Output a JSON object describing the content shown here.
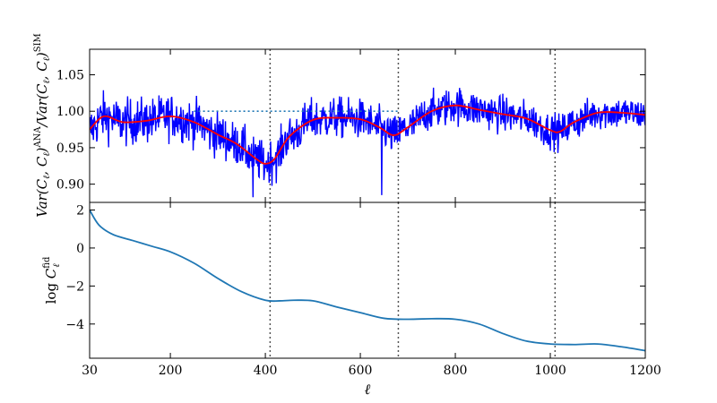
{
  "chart_data": [
    {
      "type": "line",
      "panel": "top",
      "ylabel": "Var(C_ℓ,C_ℓ)^ANA/Var(C_ℓ,C_ℓ)^SIM",
      "xlim": [
        30,
        1200
      ],
      "ylim": [
        0.875,
        1.085
      ],
      "yticks": [
        0.9,
        0.95,
        1.0,
        1.05
      ],
      "ytick_labels": [
        "0.90",
        "0.95",
        "1.00",
        "1.05"
      ],
      "series": [
        {
          "color": "#0000ff",
          "style": "noisy",
          "noise_amplitude": 0.025,
          "samples": 1171
        },
        {
          "color": "#ff0000",
          "style": "smooth",
          "x": [
            30,
            60,
            100,
            150,
            200,
            250,
            300,
            340,
            380,
            400,
            420,
            450,
            500,
            550,
            600,
            640,
            670,
            700,
            750,
            800,
            850,
            900,
            950,
            1000,
            1020,
            1050,
            1100,
            1150,
            1200
          ],
          "y": [
            0.975,
            0.993,
            0.985,
            0.987,
            0.993,
            0.985,
            0.968,
            0.955,
            0.935,
            0.928,
            0.935,
            0.965,
            0.988,
            0.991,
            0.989,
            0.978,
            0.967,
            0.978,
            1.0,
            1.008,
            1.002,
            0.996,
            0.99,
            0.974,
            0.972,
            0.985,
            0.998,
            0.998,
            0.995
          ]
        },
        {
          "color": "#1f77b4",
          "style": "dotted",
          "x": [
            250,
            680
          ],
          "y": [
            1.0,
            1.0
          ]
        }
      ],
      "vlines": [
        410,
        680,
        1010
      ]
    },
    {
      "type": "line",
      "panel": "bottom",
      "ylabel": "log C_ℓ^fid",
      "xlabel": "ℓ",
      "xlim": [
        30,
        1200
      ],
      "ylim": [
        -5.8,
        2.4
      ],
      "xticks": [
        30,
        200,
        400,
        600,
        800,
        1000,
        1200
      ],
      "xtick_labels": [
        "30",
        "200",
        "400",
        "600",
        "800",
        "1000",
        "1200"
      ],
      "yticks": [
        2,
        0,
        -2,
        -4
      ],
      "ytick_labels": [
        "2",
        "0",
        "−2",
        "−4"
      ],
      "series": [
        {
          "color": "#1f77b4",
          "x": [
            30,
            50,
            80,
            120,
            160,
            200,
            250,
            300,
            350,
            400,
            430,
            460,
            500,
            550,
            600,
            650,
            700,
            750,
            800,
            850,
            900,
            950,
            1000,
            1050,
            1100,
            1150,
            1200
          ],
          "y": [
            2.0,
            1.2,
            0.7,
            0.4,
            0.1,
            -0.2,
            -0.8,
            -1.6,
            -2.3,
            -2.75,
            -2.78,
            -2.75,
            -2.78,
            -3.1,
            -3.4,
            -3.7,
            -3.75,
            -3.72,
            -3.75,
            -4.0,
            -4.5,
            -4.9,
            -5.05,
            -5.08,
            -5.05,
            -5.2,
            -5.4
          ]
        }
      ],
      "vlines": [
        410,
        680,
        1010
      ]
    }
  ]
}
